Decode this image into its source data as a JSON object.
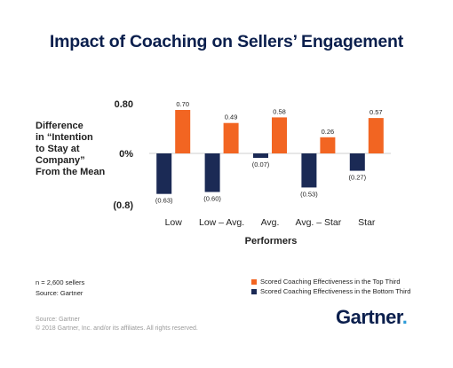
{
  "title": "Impact of Coaching on Sellers’ Engagement",
  "notes": {
    "sample": "n = 2,600 sellers",
    "source": "Source: Gartner"
  },
  "footer": {
    "source": "Source: Gartner",
    "copyright": "© 2018 Gartner, Inc. and/or its affiliates. All rights reserved."
  },
  "logo": {
    "text": "Gartner",
    "dot": ".",
    "dot_color": "#2b9bd8"
  },
  "chart_data": {
    "type": "bar",
    "title": "Impact of Coaching on Sellers’ Engagement",
    "ylabel_lines": [
      "Difference",
      "in “Intention",
      "to Stay at",
      "Company”",
      "From the Mean"
    ],
    "xlabel": "Performers",
    "categories": [
      "Low",
      "Low – Avg.",
      "Avg.",
      "Avg. – Star",
      "Star"
    ],
    "ylim": [
      -0.8,
      0.8
    ],
    "yticks": [
      {
        "value": 0.8,
        "label": "0.80"
      },
      {
        "value": 0,
        "label": "0%"
      },
      {
        "value": -0.8,
        "label": "(0.8)"
      }
    ],
    "grid": false,
    "legend_position": "bottom-right",
    "series": [
      {
        "name": "Scored Coaching Effectiveness in the Bottom Third",
        "color": "#1b2a55",
        "values": [
          -0.63,
          -0.6,
          -0.07,
          -0.53,
          -0.27
        ],
        "labels": [
          "(0.63)",
          "(0.60)",
          "(0.07)",
          "(0.53)",
          "(0.27)"
        ]
      },
      {
        "name": "Scored Coaching Effectiveness in the Top Third",
        "color": "#f26522",
        "values": [
          0.7,
          0.49,
          0.58,
          0.26,
          0.57
        ],
        "labels": [
          "0.70",
          "0.49",
          "0.58",
          "0.26",
          "0.57"
        ]
      }
    ],
    "legend_order": [
      1,
      0
    ]
  }
}
